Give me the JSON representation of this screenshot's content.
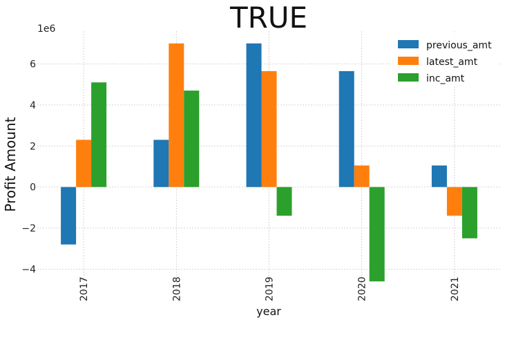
{
  "chart_data": {
    "type": "bar",
    "title": "TRUE",
    "xlabel": "year",
    "ylabel": "Profit Amount",
    "y_offset_text": "1e6",
    "categories": [
      "2017",
      "2018",
      "2019",
      "2020",
      "2021"
    ],
    "series": [
      {
        "name": "previous_amt",
        "color": "#1f77b4",
        "values": [
          -2800000,
          2300000,
          7000000,
          5650000,
          1050000
        ]
      },
      {
        "name": "latest_amt",
        "color": "#ff7f0e",
        "values": [
          2300000,
          7000000,
          5650000,
          1050000,
          -1400000
        ]
      },
      {
        "name": "inc_amt",
        "color": "#2ca02c",
        "values": [
          5100000,
          4700000,
          -1400000,
          -4600000,
          -2500000
        ]
      }
    ],
    "ylim": [
      -5200000,
      7600000
    ],
    "yticks": [
      -4000000,
      -2000000,
      0,
      2000000,
      4000000,
      6000000
    ],
    "ytick_labels": [
      "−4",
      "−2",
      "0",
      "2",
      "4",
      "6"
    ],
    "grid": true,
    "legend_position": "top-right"
  }
}
